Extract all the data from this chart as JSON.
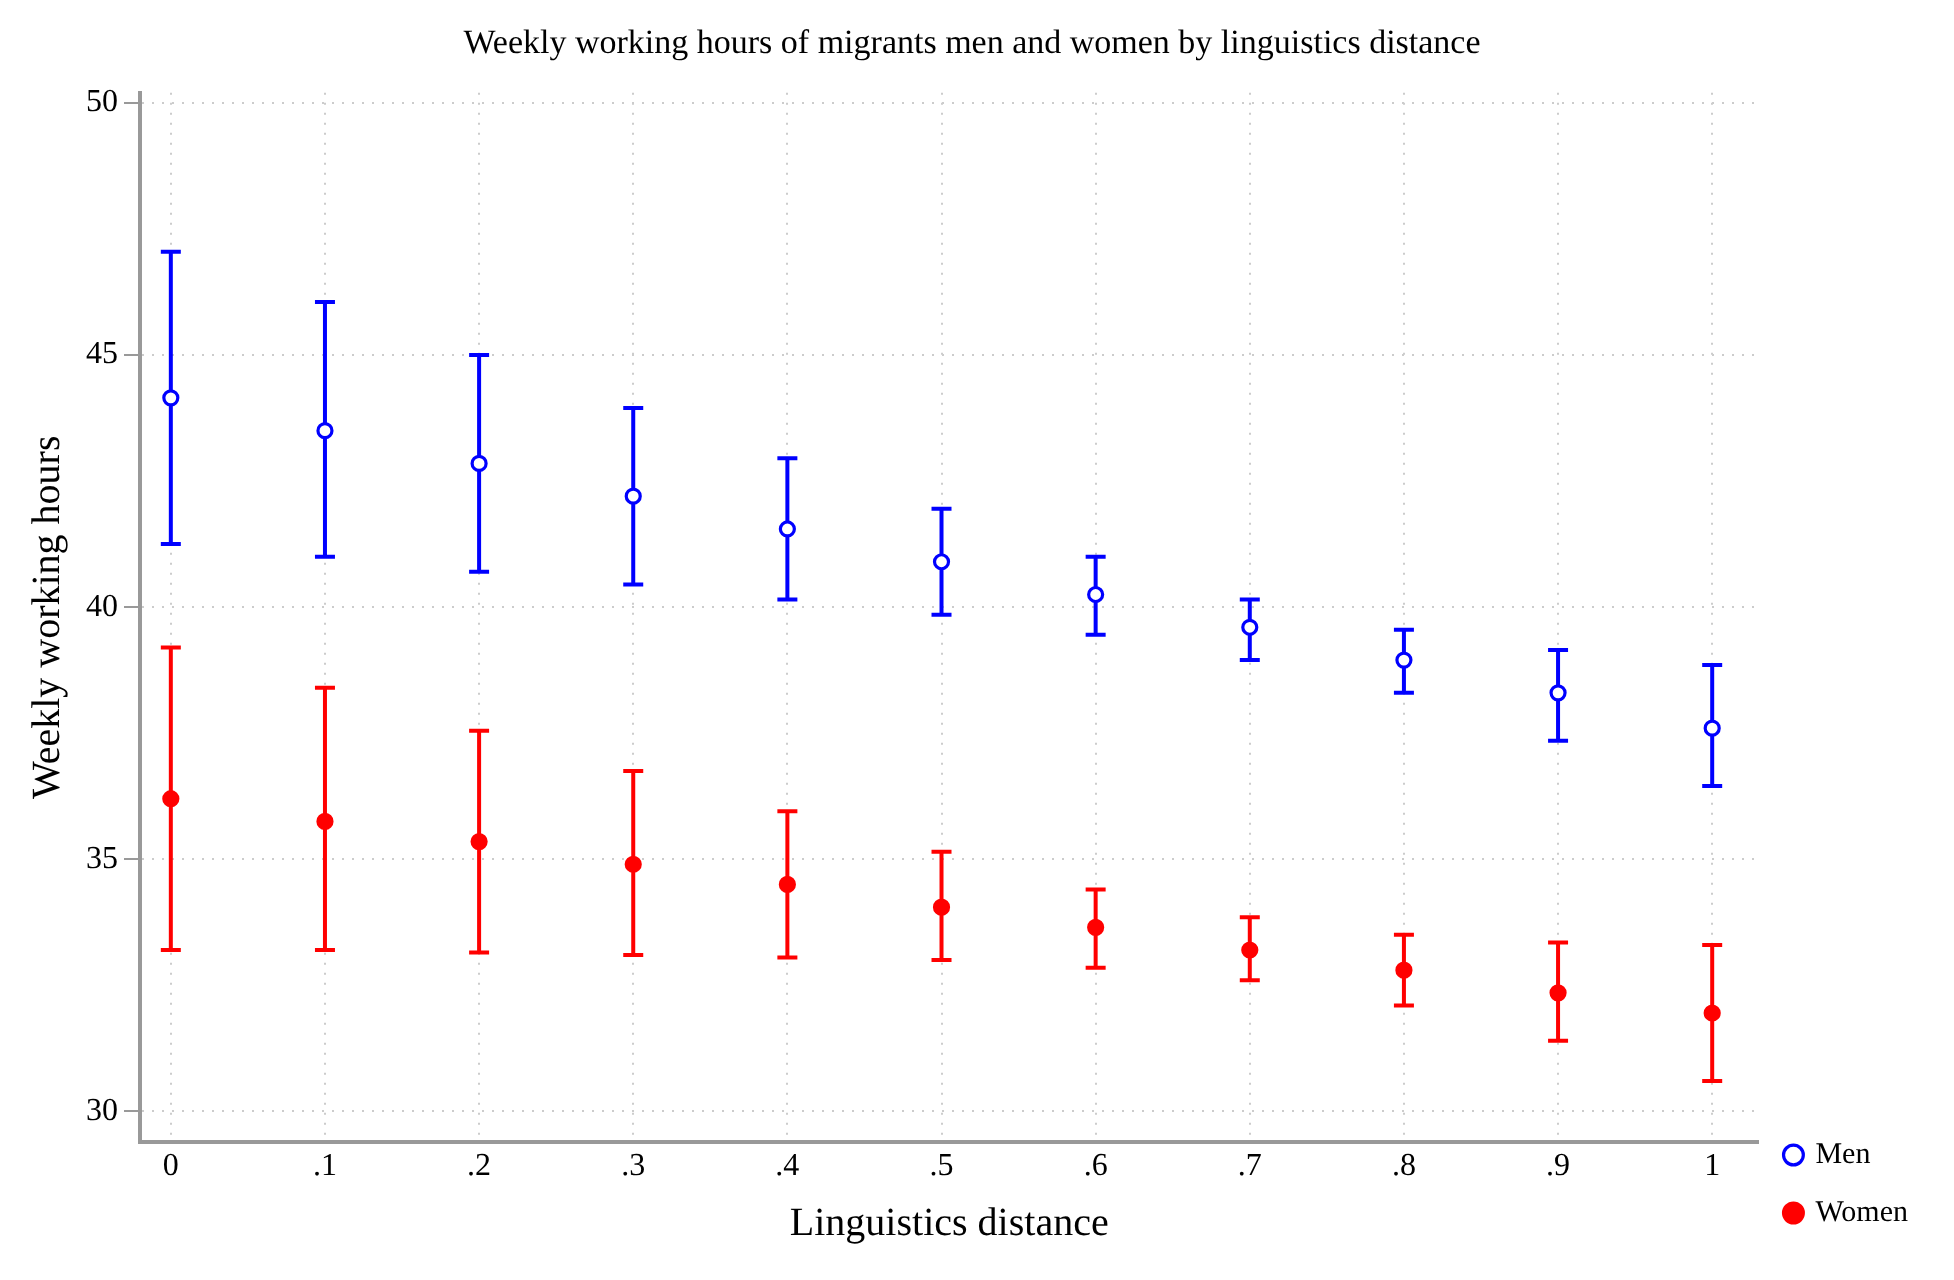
{
  "chart_data": {
    "type": "scatter",
    "title": "Weekly working hours of migrants men and women by linguistics distance",
    "xlabel": "Linguistics distance",
    "ylabel": "Weekly working hours",
    "x": [
      0,
      0.1,
      0.2,
      0.3,
      0.4,
      0.5,
      0.6,
      0.7,
      0.8,
      0.9,
      1
    ],
    "series": [
      {
        "name": "Men",
        "color": "#0000ff",
        "values": [
          44.15,
          43.5,
          42.85,
          42.2,
          41.55,
          40.9,
          40.25,
          39.6,
          38.95,
          38.3,
          37.6
        ],
        "errors": [
          [
            41.25,
            47.05
          ],
          [
            41,
            46.05
          ],
          [
            40.7,
            45
          ],
          [
            40.45,
            43.95
          ],
          [
            40.15,
            42.95
          ],
          [
            39.85,
            41.95
          ],
          [
            39.45,
            41
          ],
          [
            38.95,
            40.15
          ],
          [
            38.3,
            39.55
          ],
          [
            37.35,
            39.15
          ],
          [
            36.45,
            38.85
          ]
        ]
      },
      {
        "name": "Women",
        "color": "#ff0000",
        "values": [
          36.2,
          35.75,
          35.35,
          34.9,
          34.5,
          34.05,
          33.65,
          33.2,
          32.8,
          32.35,
          31.95
        ],
        "errors": [
          [
            33.2,
            39.2
          ],
          [
            33.2,
            38.4
          ],
          [
            33.15,
            37.55
          ],
          [
            33.1,
            36.75
          ],
          [
            33.05,
            35.95
          ],
          [
            33,
            35.15
          ],
          [
            32.85,
            34.4
          ],
          [
            32.6,
            33.85
          ],
          [
            32.1,
            33.5
          ],
          [
            31.4,
            33.35
          ],
          [
            30.6,
            33.3
          ]
        ]
      }
    ],
    "xlim": [
      -0.02,
      1.03
    ],
    "xticks": [
      0,
      {
        "value": 0.1,
        "label": ".1"
      },
      {
        "value": 0.2,
        "label": ".2"
      },
      {
        "value": 0.3,
        "label": ".3"
      },
      {
        "value": 0.4,
        "label": ".4"
      },
      {
        "value": 0.5,
        "label": ".5"
      },
      {
        "value": 0.6,
        "label": ".6"
      },
      {
        "value": 0.7,
        "label": ".7"
      },
      {
        "value": 0.8,
        "label": ".8"
      },
      {
        "value": 0.9,
        "label": ".9"
      },
      1
    ],
    "ylim": [
      29.4,
      50.2
    ],
    "yticks": [
      30,
      35,
      40,
      45,
      50
    ],
    "grid": true,
    "legend": "right",
    "marker": "circle"
  }
}
